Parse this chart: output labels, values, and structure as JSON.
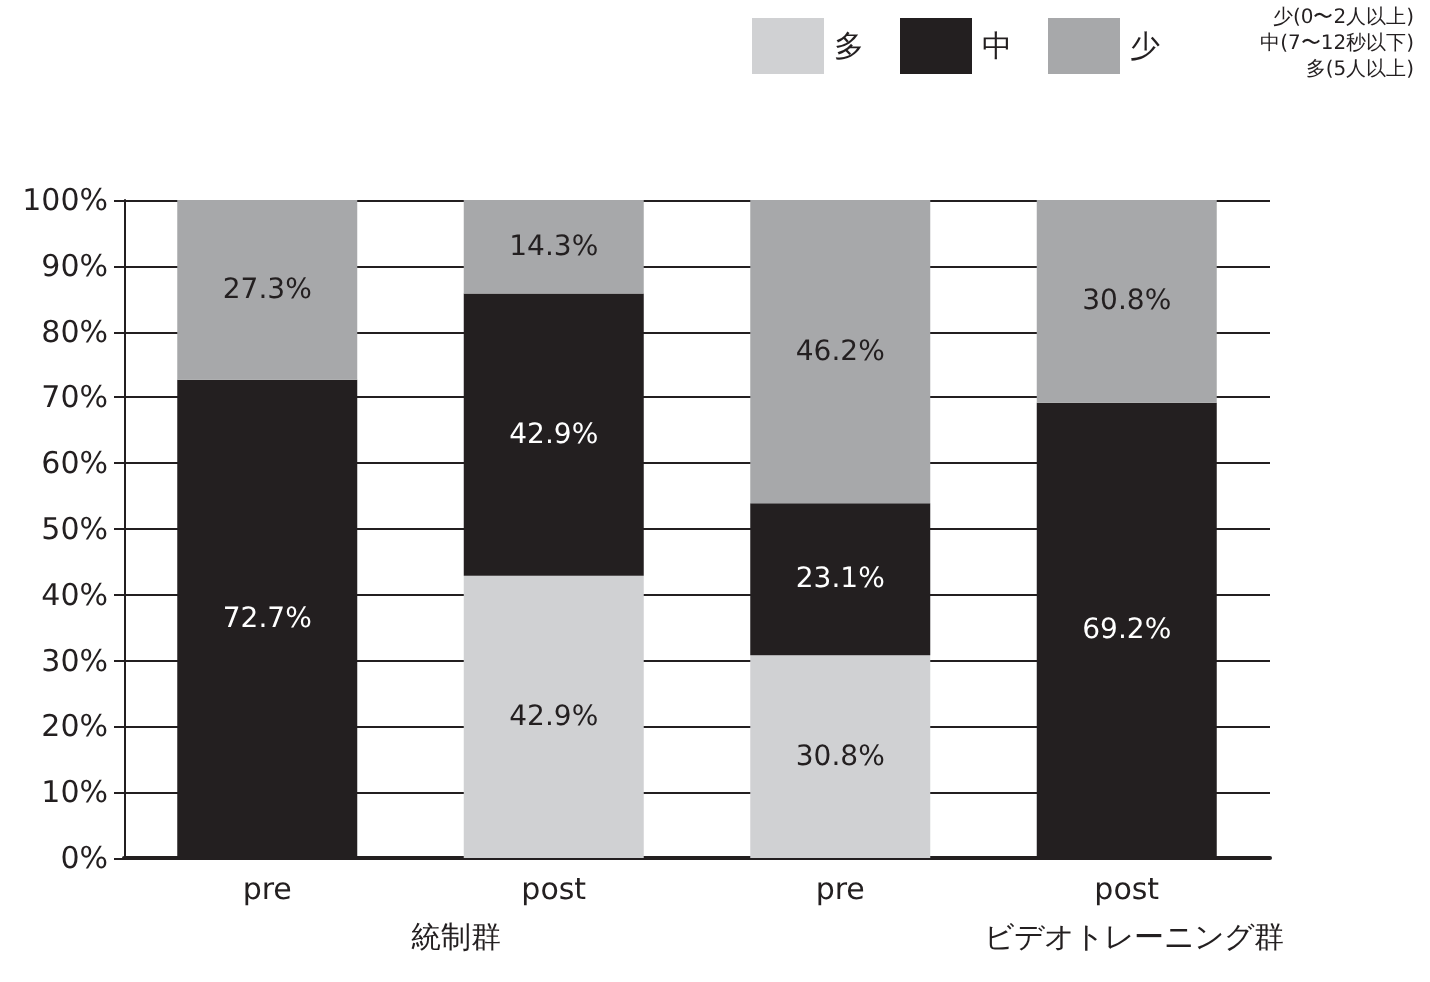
{
  "chart_data": {
    "type": "bar",
    "stacked": true,
    "categories": [
      "pre",
      "post",
      "pre",
      "post"
    ],
    "series": [
      {
        "name": "多",
        "color": "#d0d1d3",
        "values": [
          0,
          42.9,
          30.8,
          0
        ],
        "value_labels": [
          null,
          "42.9%",
          "30.8%",
          null
        ]
      },
      {
        "name": "中",
        "color": "#231f20",
        "values": [
          72.7,
          42.9,
          23.1,
          69.2
        ],
        "value_labels": [
          "72.7%",
          "42.9%",
          "23.1%",
          "69.2%"
        ]
      },
      {
        "name": "少",
        "color": "#a7a8aa",
        "values": [
          27.3,
          14.3,
          46.2,
          30.8
        ],
        "value_labels": [
          "27.3%",
          "14.3%",
          "46.2%",
          "30.8%"
        ]
      }
    ],
    "ylim": [
      0,
      100
    ],
    "yticks": [
      {
        "value": 0,
        "label": "0%"
      },
      {
        "value": 10,
        "label": "10%"
      },
      {
        "value": 20,
        "label": "20%"
      },
      {
        "value": 30,
        "label": "30%"
      },
      {
        "value": 40,
        "label": "40%"
      },
      {
        "value": 50,
        "label": "50%"
      },
      {
        "value": 60,
        "label": "60%"
      },
      {
        "value": 70,
        "label": "70%"
      },
      {
        "value": 80,
        "label": "80%"
      },
      {
        "value": 90,
        "label": "90%"
      },
      {
        "value": 100,
        "label": "100%"
      }
    ],
    "grid": "y",
    "legend": "top right",
    "annotations": [
      "統制群",
      "ビデオトレーニング群",
      "少(0〜2人以上)",
      "中(7〜12秒以下)",
      "多(5人以上)"
    ]
  }
}
